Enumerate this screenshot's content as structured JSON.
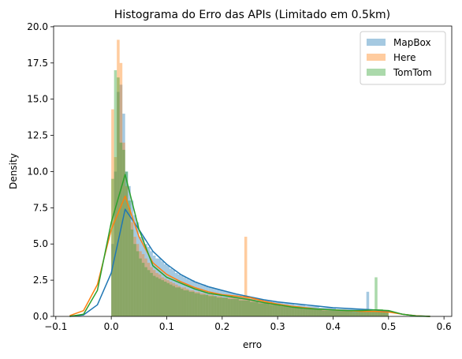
{
  "chart_data": {
    "type": "histogram",
    "title": "Histograma do Erro das APIs (Limitado em 0.5km)",
    "x_label": "erro",
    "y_label": "Density",
    "xlim": [
      -0.104,
      0.614
    ],
    "ylim": [
      0,
      20.05
    ],
    "xticks": [
      {
        "value": -0.1,
        "label": "−0.1"
      },
      {
        "value": 0,
        "label": "0.0"
      },
      0.1,
      0.2,
      0.3,
      0.4,
      0.5,
      0.6
    ],
    "yticks": [
      {
        "value": 0,
        "label": "0.0"
      },
      2.5,
      {
        "value": 5,
        "label": "5.0"
      },
      7.5,
      {
        "value": 10,
        "label": "10.0"
      },
      12.5,
      {
        "value": 15,
        "label": "15.0"
      },
      17.5,
      {
        "value": 20,
        "label": "20.0"
      }
    ],
    "legend": "upper right",
    "bins": [
      0,
      0.005,
      0.01,
      0.015,
      0.02,
      0.025,
      0.03,
      0.035,
      0.04,
      0.045,
      0.05,
      0.055,
      0.06,
      0.065,
      0.07,
      0.075,
      0.08,
      0.085,
      0.09,
      0.095,
      0.1,
      0.105,
      0.11,
      0.115,
      0.12,
      0.125,
      0.13,
      0.135,
      0.14,
      0.145,
      0.15,
      0.155,
      0.16,
      0.165,
      0.17,
      0.175,
      0.18,
      0.185,
      0.19,
      0.195,
      0.2,
      0.205,
      0.21,
      0.215,
      0.22,
      0.225,
      0.23,
      0.235,
      0.24,
      0.245,
      0.25,
      0.255,
      0.26,
      0.265,
      0.27,
      0.275,
      0.28,
      0.285,
      0.29,
      0.295,
      0.3,
      0.305,
      0.31,
      0.315,
      0.32,
      0.325,
      0.33,
      0.335,
      0.34,
      0.345,
      0.35,
      0.355,
      0.36,
      0.365,
      0.37,
      0.375,
      0.38,
      0.385,
      0.39,
      0.395,
      0.4,
      0.405,
      0.41,
      0.415,
      0.42,
      0.425,
      0.43,
      0.435,
      0.44,
      0.445,
      0.45,
      0.455,
      0.46,
      0.465,
      0.47,
      0.475,
      0.48,
      0.485,
      0.49,
      0.495,
      0.5
    ],
    "kde_x": [
      -0.075,
      -0.05,
      -0.025,
      0,
      0.025,
      0.05,
      0.075,
      0.1,
      0.125,
      0.15,
      0.175,
      0.2,
      0.225,
      0.25,
      0.275,
      0.3,
      0.325,
      0.35,
      0.375,
      0.4,
      0.425,
      0.45,
      0.475,
      0.5,
      0.525,
      0.55,
      0.575
    ],
    "series": [
      {
        "name": "MapBox",
        "color": "#1f77b4",
        "values": [
          5,
          10,
          15.5,
          16,
          14,
          10,
          9,
          8,
          7,
          6.5,
          5.5,
          5.5,
          5,
          4.8,
          4.5,
          4.2,
          4,
          4,
          3.8,
          3.6,
          3.5,
          3.3,
          3.2,
          3,
          2.9,
          2.8,
          2.7,
          2.6,
          2.5,
          2.5,
          2.4,
          2.3,
          2.2,
          2.2,
          2.1,
          2,
          2,
          1.9,
          1.9,
          1.8,
          1.8,
          1.7,
          1.7,
          1.6,
          1.6,
          1.5,
          1.5,
          1.4,
          1.4,
          1.4,
          1.3,
          1.3,
          1.2,
          1.2,
          1.2,
          1.1,
          1.1,
          1.1,
          1,
          1,
          1,
          1,
          0.9,
          0.9,
          0.9,
          0.9,
          0.8,
          0.8,
          0.8,
          0.8,
          0.7,
          0.7,
          0.7,
          0.7,
          0.7,
          0.6,
          0.6,
          0.6,
          0.6,
          0.6,
          0.6,
          0.5,
          0.5,
          0.5,
          0.5,
          0.5,
          0.5,
          0.5,
          0.5,
          0.5,
          0.5,
          0.5,
          1.7,
          0.5,
          0.4,
          0.4,
          0.4,
          0.4,
          0.3,
          0.3
        ],
        "kde": [
          0,
          0.1,
          0.8,
          3.0,
          7.4,
          6.0,
          4.5,
          3.6,
          2.9,
          2.4,
          2.05,
          1.8,
          1.55,
          1.35,
          1.15,
          1.0,
          0.9,
          0.8,
          0.7,
          0.6,
          0.55,
          0.5,
          0.45,
          0.35,
          0.15,
          0.04,
          0
        ]
      },
      {
        "name": "Here",
        "color": "#ff7f0e",
        "values": [
          14.3,
          11,
          19.1,
          17.5,
          12,
          9,
          7.5,
          6.5,
          5.5,
          5,
          4.5,
          4.3,
          4,
          3.7,
          3.4,
          3.2,
          3,
          2.9,
          2.7,
          2.6,
          2.5,
          2.4,
          2.3,
          2.2,
          2.1,
          2,
          2,
          1.9,
          1.8,
          1.8,
          1.7,
          1.7,
          1.6,
          1.6,
          1.5,
          1.5,
          1.5,
          1.4,
          1.4,
          1.4,
          1.3,
          1.3,
          1.3,
          1.3,
          1.3,
          1.3,
          1.3,
          1.3,
          5.5,
          1.3,
          1.2,
          1.2,
          1.1,
          1.1,
          1.1,
          1,
          1,
          1,
          0.9,
          0.9,
          0.9,
          0.8,
          0.8,
          0.8,
          0.7,
          0.7,
          0.7,
          0.7,
          0.6,
          0.6,
          0.6,
          0.6,
          0.5,
          0.5,
          0.5,
          0.5,
          0.5,
          0.5,
          0.4,
          0.4,
          0.4,
          0.4,
          0.4,
          0.4,
          0.4,
          0.4,
          0.4,
          0.3,
          0.3,
          0.3,
          0.3,
          0.3,
          0.3,
          0.3,
          0.3,
          0.3,
          0.3,
          0.3,
          0.3,
          0.3
        ],
        "kde": [
          0.05,
          0.4,
          2.2,
          6.0,
          8.3,
          5.5,
          3.7,
          2.9,
          2.4,
          2.0,
          1.7,
          1.5,
          1.4,
          1.3,
          1.05,
          0.85,
          0.7,
          0.6,
          0.5,
          0.45,
          0.4,
          0.35,
          0.35,
          0.3,
          0.15,
          0.04,
          0
        ]
      },
      {
        "name": "TomTom",
        "color": "#2ca02c",
        "values": [
          9.5,
          17,
          16.5,
          12,
          11.5,
          10,
          8,
          6,
          5,
          4.5,
          4,
          3.7,
          3.4,
          3.2,
          3,
          2.8,
          2.7,
          2.6,
          2.5,
          2.4,
          2.3,
          2.2,
          2.1,
          2,
          2,
          1.9,
          1.8,
          1.8,
          1.7,
          1.7,
          1.6,
          1.6,
          1.5,
          1.5,
          1.5,
          1.4,
          1.4,
          1.4,
          1.3,
          1.3,
          1.3,
          1.3,
          1.2,
          1.2,
          1.2,
          1.2,
          1.1,
          1.1,
          1.1,
          1.1,
          1,
          1,
          1,
          0.9,
          0.9,
          0.9,
          0.9,
          0.8,
          0.8,
          0.8,
          0.8,
          0.7,
          0.7,
          0.7,
          0.7,
          0.6,
          0.6,
          0.6,
          0.6,
          0.5,
          0.5,
          0.5,
          0.5,
          0.5,
          0.5,
          0.5,
          0.4,
          0.4,
          0.4,
          0.4,
          0.4,
          0.4,
          0.4,
          0.4,
          0.4,
          0.4,
          0.4,
          0.4,
          0.4,
          0.4,
          0.4,
          0.4,
          0.4,
          0.4,
          0.4,
          2.7,
          0.5,
          0.5,
          0.4,
          0.4
        ],
        "kde": [
          0,
          0.15,
          1.8,
          6.5,
          9.8,
          6.0,
          3.5,
          2.7,
          2.3,
          1.9,
          1.6,
          1.45,
          1.3,
          1.15,
          0.95,
          0.8,
          0.65,
          0.55,
          0.5,
          0.45,
          0.4,
          0.4,
          0.45,
          0.4,
          0.15,
          0.03,
          0
        ]
      }
    ]
  }
}
